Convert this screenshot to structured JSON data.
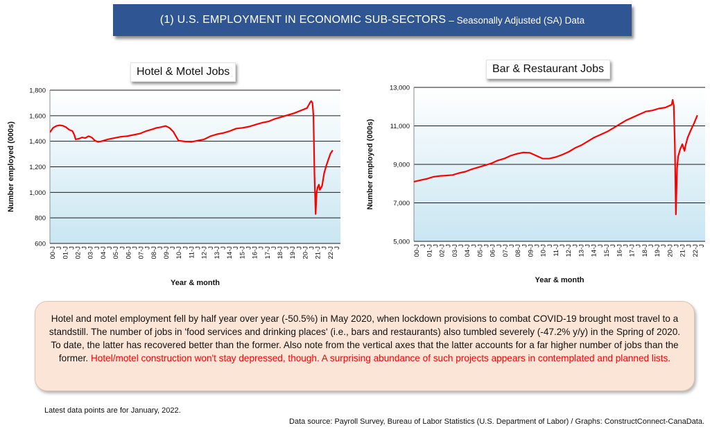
{
  "banner": {
    "title": "(1) U.S. EMPLOYMENT IN ECONOMIC SUB-SECTORS",
    "subtitle": "– Seasonally Adjusted (SA) Data"
  },
  "chart_data": [
    {
      "type": "line",
      "title": "Hotel & Motel Jobs",
      "xlabel": "Year & month",
      "ylabel": "Number employed (000s)",
      "ylim": [
        600,
        1800
      ],
      "yticks": [
        600,
        800,
        1000,
        1200,
        1400,
        1600,
        1800
      ],
      "ytick_labels": [
        "600",
        "800",
        "1,000",
        "1,200",
        "1,400",
        "1,600",
        "1,800"
      ],
      "xlim": [
        2000.0,
        2022.6
      ],
      "xtick_labels": [
        "00-J",
        "J",
        "01-J",
        "J",
        "02-J",
        "J",
        "03-J",
        "J",
        "04-J",
        "J",
        "05-J",
        "J",
        "06-J",
        "J",
        "07-J",
        "J",
        "08-J",
        "J",
        "09-J",
        "J",
        "10-J",
        "J",
        "11-J",
        "J",
        "12-J",
        "J",
        "13-J",
        "J",
        "14-J",
        "J",
        "15-J",
        "J",
        "16-J",
        "J",
        "17-J",
        "J",
        "18-J",
        "J",
        "19-J",
        "J",
        "20-J",
        "J",
        "21-J",
        "J",
        "22-J",
        "J"
      ],
      "grid": "horizontal",
      "plot_background": "gradient-light-blue",
      "line_color": "#ff0000",
      "series": [
        {
          "x": [
            2000.0,
            2000.25,
            2000.5,
            2000.75,
            2001.0,
            2001.25,
            2001.5,
            2001.75,
            2001.9,
            2002.0,
            2002.25,
            2002.5,
            2002.75,
            2003.0,
            2003.25,
            2003.5,
            2003.75,
            2004.0,
            2004.5,
            2005.0,
            2005.5,
            2006.0,
            2006.5,
            2007.0,
            2007.5,
            2008.0,
            2008.3,
            2008.6,
            2009.0,
            2009.3,
            2009.6,
            2010.0,
            2010.5,
            2011.0,
            2011.5,
            2012.0,
            2012.5,
            2013.0,
            2013.5,
            2014.0,
            2014.5,
            2015.0,
            2015.5,
            2016.0,
            2016.5,
            2017.0,
            2017.5,
            2018.0,
            2018.5,
            2019.0,
            2019.5,
            2020.0,
            2020.08,
            2020.17,
            2020.25,
            2020.33,
            2020.42,
            2020.5,
            2020.58,
            2020.67,
            2020.75,
            2020.83,
            2020.92,
            2021.0,
            2021.17,
            2021.33,
            2021.5,
            2021.67,
            2021.83,
            2022.0
          ],
          "y": [
            1470,
            1505,
            1520,
            1525,
            1522,
            1510,
            1490,
            1480,
            1450,
            1415,
            1420,
            1430,
            1425,
            1440,
            1430,
            1405,
            1395,
            1400,
            1415,
            1425,
            1435,
            1440,
            1450,
            1460,
            1480,
            1495,
            1505,
            1510,
            1520,
            1505,
            1475,
            1405,
            1398,
            1395,
            1405,
            1415,
            1440,
            1455,
            1465,
            1480,
            1500,
            1505,
            1515,
            1530,
            1545,
            1555,
            1575,
            1590,
            1605,
            1620,
            1640,
            1660,
            1675,
            1690,
            1705,
            1715,
            1700,
            1600,
            1150,
            830,
            1000,
            1040,
            1060,
            1020,
            1050,
            1150,
            1210,
            1260,
            1305,
            1330
          ]
        }
      ]
    },
    {
      "type": "line",
      "title": "Bar & Restaurant Jobs",
      "xlabel": "Year & month",
      "ylabel": "Number employed (000s)",
      "ylim": [
        5000,
        13000
      ],
      "yticks": [
        5000,
        7000,
        9000,
        11000,
        13000
      ],
      "ytick_labels": [
        "5,000",
        "7,000",
        "9,000",
        "11,000",
        "13,000"
      ],
      "xlim": [
        2000.0,
        2022.6
      ],
      "xtick_labels": [
        "00-J",
        "J",
        "01-J",
        "J",
        "02-J",
        "J",
        "03-J",
        "J",
        "04-J",
        "J",
        "05-J",
        "J",
        "06-J",
        "J",
        "07-J",
        "J",
        "08-J",
        "J",
        "09-J",
        "J",
        "10-J",
        "J",
        "11-J",
        "J",
        "12-J",
        "J",
        "13-J",
        "J",
        "14-J",
        "J",
        "15-J",
        "J",
        "16-J",
        "J",
        "17-J",
        "J",
        "18-J",
        "J",
        "19-J",
        "J",
        "20-J",
        "J",
        "21-J",
        "J",
        "22-J",
        "J"
      ],
      "grid": "horizontal",
      "plot_background": "gradient-light-blue",
      "line_color": "#ff0000",
      "series": [
        {
          "x": [
            2000.0,
            2000.5,
            2001.0,
            2001.5,
            2002.0,
            2002.5,
            2003.0,
            2003.5,
            2004.0,
            2004.5,
            2005.0,
            2005.5,
            2006.0,
            2006.5,
            2007.0,
            2007.5,
            2008.0,
            2008.5,
            2009.0,
            2009.5,
            2010.0,
            2010.5,
            2011.0,
            2011.5,
            2012.0,
            2012.5,
            2013.0,
            2013.5,
            2014.0,
            2014.5,
            2015.0,
            2015.5,
            2016.0,
            2016.5,
            2017.0,
            2017.5,
            2018.0,
            2018.5,
            2019.0,
            2019.5,
            2019.83,
            2020.0,
            2020.08,
            2020.17,
            2020.25,
            2020.33,
            2020.42,
            2020.5,
            2020.67,
            2020.83,
            2021.0,
            2021.08,
            2021.25,
            2021.5,
            2021.75,
            2022.0
          ],
          "y": [
            8100,
            8180,
            8250,
            8350,
            8400,
            8420,
            8450,
            8550,
            8620,
            8750,
            8850,
            8950,
            9050,
            9200,
            9300,
            9450,
            9550,
            9620,
            9600,
            9450,
            9300,
            9300,
            9380,
            9500,
            9650,
            9850,
            10000,
            10200,
            10400,
            10550,
            10700,
            10900,
            11100,
            11300,
            11450,
            11600,
            11750,
            11800,
            11900,
            11950,
            12050,
            12100,
            12350,
            12050,
            10000,
            6400,
            8800,
            9400,
            9800,
            10050,
            9700,
            10000,
            10400,
            10800,
            11150,
            11550
          ]
        }
      ]
    }
  ],
  "note": {
    "text": "Hotel and motel employment fell by half year over year (-50.5%) in May 2020, when lockdown provisions to combat COVID-19 brought most travel to a standstill. The number of jobs in 'food services and drinking places' (i.e., bars and restaurants) also tumbled severely (-47.2% y/y) in the Spring of 2020. To date, the latter has recovered better than the former. Also note from the vertical axes that the latter accounts for a far higher number of jobs than the former.",
    "highlight": "Hotel/motel construction won't stay depressed, though. A surprising abundance of such projects appears in contemplated and planned lists."
  },
  "footer": {
    "latest": "Latest data points are for January, 2022.",
    "source": "Data source: Payroll Survey, Bureau of Labor Statistics (U.S. Department of Labor) / Graphs: ConstructConnect-CanaData."
  },
  "colors": {
    "banner": "#2f5592",
    "line": "#ff0000",
    "note_background": "#fbe5d6",
    "highlight_text": "#ff0000"
  }
}
